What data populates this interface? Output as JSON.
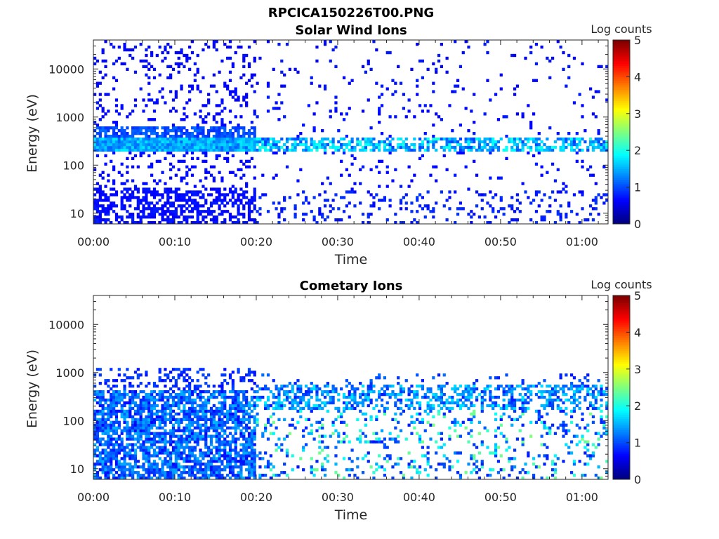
{
  "figure_title": "RPCICA150226T00.PNG",
  "chart_data": [
    {
      "type": "heatmap",
      "title": "Solar Wind Ions",
      "xlabel": "Time",
      "ylabel": "Energy (eV)",
      "x_tick_labels": [
        "00:00",
        "00:10",
        "00:20",
        "00:30",
        "00:40",
        "00:50",
        "01:00"
      ],
      "y_scale": "log",
      "y_tick_labels": [
        "10",
        "100",
        "1000",
        "10000"
      ],
      "colorbar": {
        "label": "Log counts",
        "range": [
          0,
          5
        ],
        "tick_labels": [
          "0",
          "1",
          "2",
          "3",
          "4",
          "5"
        ],
        "colormap": "jet"
      },
      "estimated_features": {
        "main_band_energy_eV": [
          200,
          400
        ],
        "main_band_log_counts": [
          1,
          2
        ],
        "low_energy_dense_until": "00:20"
      }
    },
    {
      "type": "heatmap",
      "title": "Cometary Ions",
      "xlabel": "Time",
      "ylabel": "Energy (eV)",
      "x_tick_labels": [
        "00:00",
        "00:10",
        "00:20",
        "00:30",
        "00:40",
        "00:50",
        "01:00"
      ],
      "y_scale": "log",
      "y_tick_labels": [
        "10",
        "100",
        "1000",
        "10000"
      ],
      "colorbar": {
        "label": "Log counts",
        "range": [
          0,
          5
        ],
        "tick_labels": [
          "0",
          "1",
          "2",
          "3",
          "4",
          "5"
        ],
        "colormap": "jet"
      },
      "estimated_features": {
        "dense_energy_range_eV": [
          6,
          1200
        ],
        "spike_log_counts": [
          1,
          2.5
        ]
      }
    }
  ]
}
